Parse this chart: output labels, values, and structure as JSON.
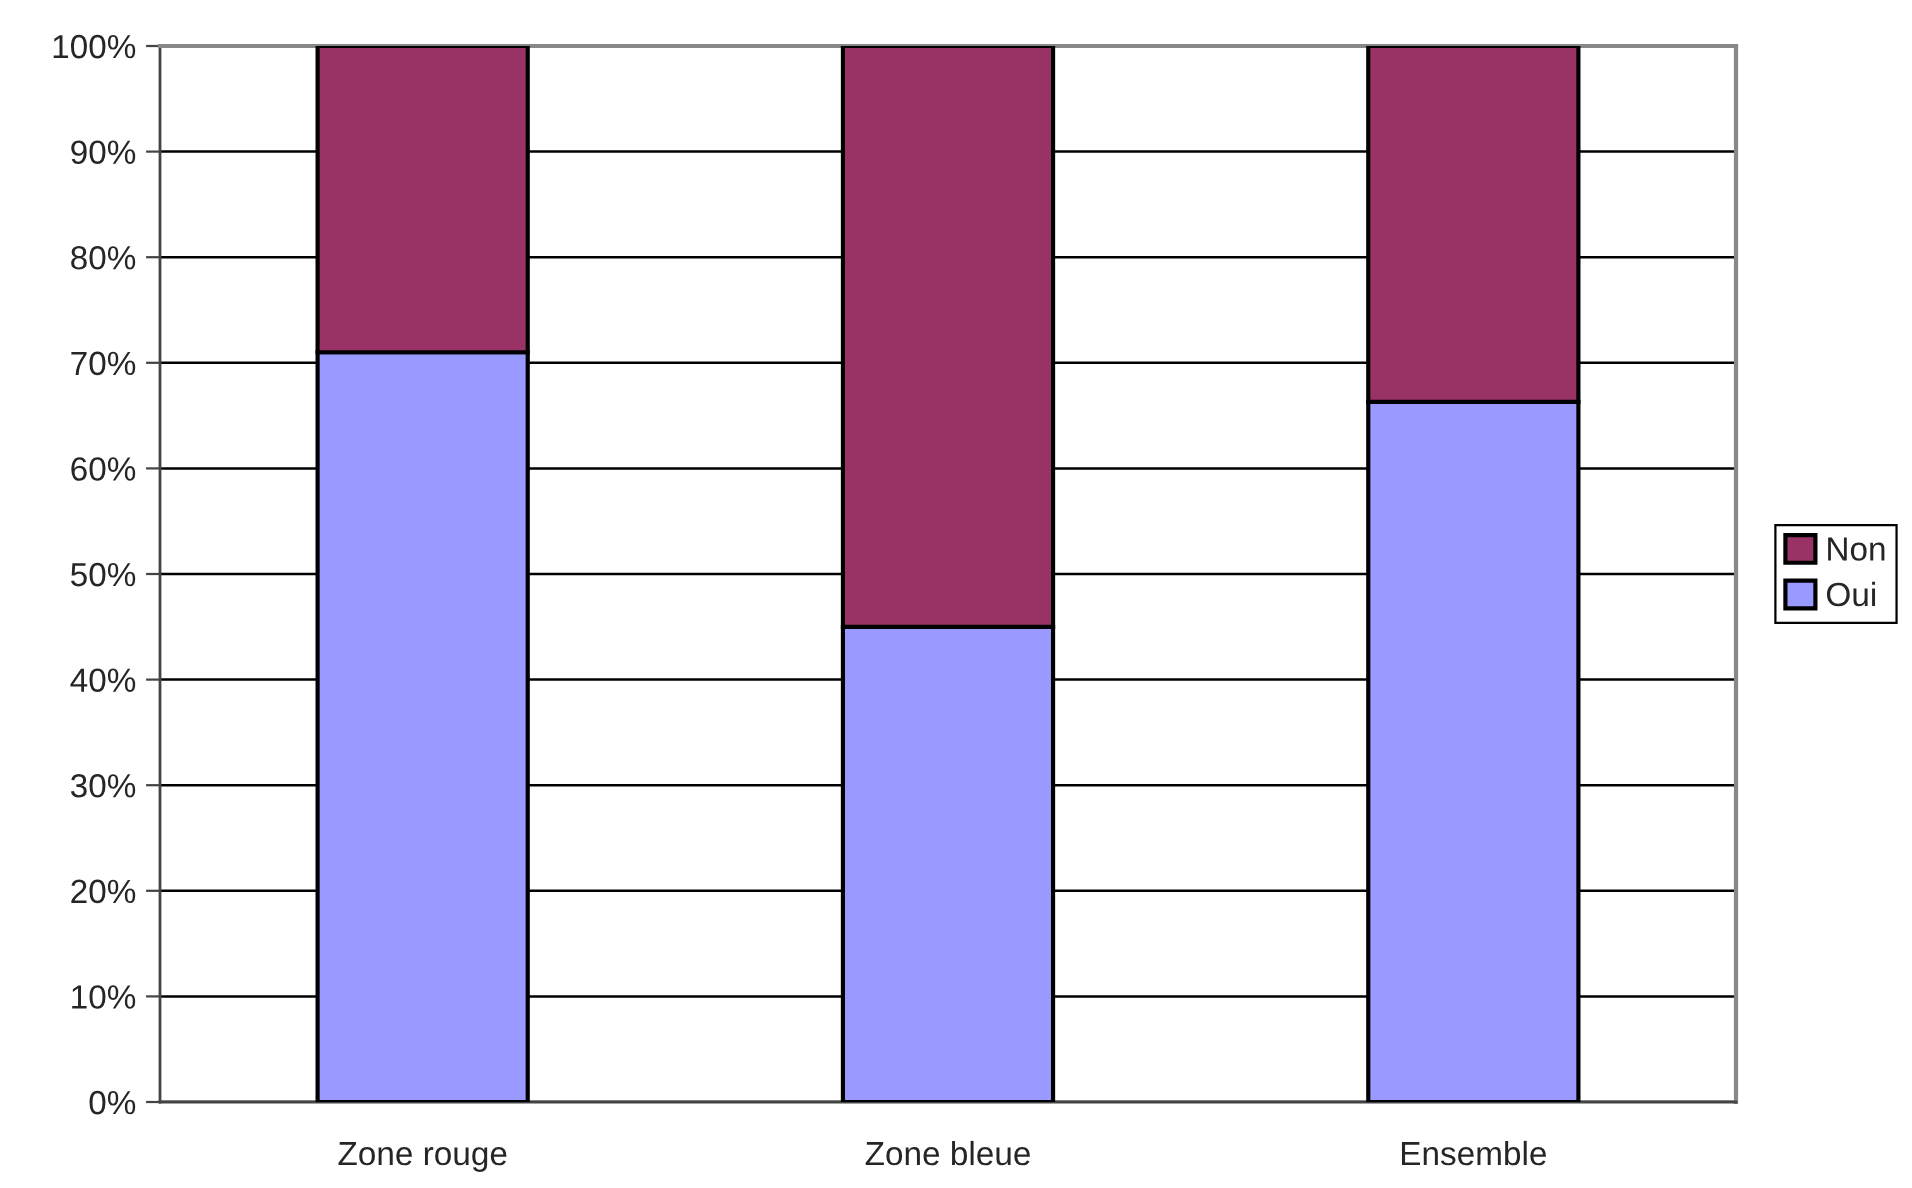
{
  "chart_data": {
    "type": "bar",
    "stacked": true,
    "categories": [
      "Zone rouge",
      "Zone bleue",
      "Ensemble"
    ],
    "series": [
      {
        "name": "Oui",
        "color": "#9999ff",
        "values": [
          71,
          45,
          66.3
        ]
      },
      {
        "name": "Non",
        "color": "#993366",
        "values": [
          29,
          55,
          33.7
        ]
      }
    ],
    "ylim": [
      0,
      100
    ],
    "yticks": [
      {
        "value": 0,
        "label": "0%"
      },
      {
        "value": 10,
        "label": "10%"
      },
      {
        "value": 20,
        "label": "20%"
      },
      {
        "value": 30,
        "label": "30%"
      },
      {
        "value": 40,
        "label": "40%"
      },
      {
        "value": 50,
        "label": "50%"
      },
      {
        "value": 60,
        "label": "60%"
      },
      {
        "value": 70,
        "label": "70%"
      },
      {
        "value": 80,
        "label": "80%"
      },
      {
        "value": 90,
        "label": "90%"
      },
      {
        "value": 100,
        "label": "100%"
      }
    ],
    "grid": "y",
    "legend": "right"
  }
}
